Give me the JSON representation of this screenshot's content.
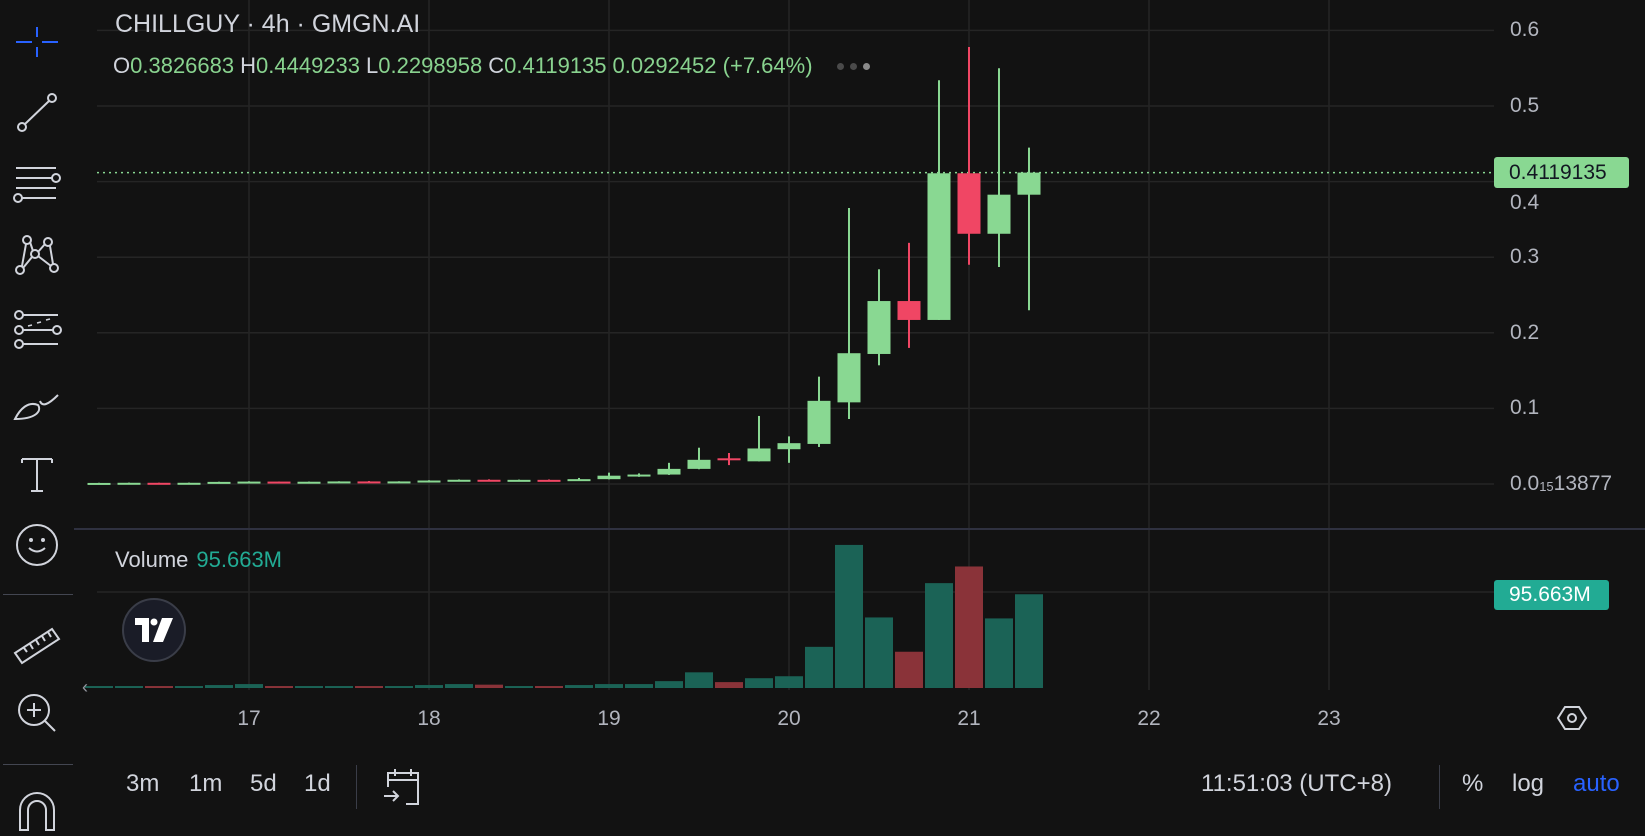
{
  "header": {
    "title": "CHILLGUY · 4h · GMGN.AI",
    "ohlc": {
      "o_label": "O",
      "o": "0.3826683",
      "h_label": "H",
      "h": "0.4449233",
      "l_label": "L",
      "l": "0.2298958",
      "c_label": "C",
      "c": "0.4119135",
      "change": "0.0292452 (+7.64%)"
    }
  },
  "colors": {
    "up": "#89d892",
    "down": "#f04664",
    "vol_up": "#1b6356",
    "vol_down": "#8a3339",
    "accent": "#2962ff",
    "background": "#121212",
    "volume_tag": "#22ab94"
  },
  "price_axis": {
    "labels": [
      {
        "value": 0.6,
        "text": "0.6"
      },
      {
        "value": 0.5,
        "text": "0.5"
      },
      {
        "value": 0.4,
        "text": "0.4"
      },
      {
        "value": 0.3,
        "text": "0.3"
      },
      {
        "value": 0.2,
        "text": "0.2"
      },
      {
        "value": 0.1,
        "text": "0.1"
      }
    ],
    "bottom_label": {
      "prefix": "0.0",
      "sub": "15",
      "rest": "13877"
    },
    "last_price_tag": "0.4119135"
  },
  "volume": {
    "label": "Volume",
    "value": "95.663M",
    "tag": "95.663M"
  },
  "time_axis": {
    "labels": [
      "17",
      "18",
      "19",
      "20",
      "21",
      "22",
      "23"
    ]
  },
  "chart_data": {
    "type": "candlestick",
    "symbol": "CHILLGUY",
    "interval": "4h",
    "ylim": [
      0,
      0.6
    ],
    "x_unit": "day of month",
    "candles": [
      {
        "day": 16,
        "hour": 4,
        "o": 0.0012,
        "h": 0.0016,
        "l": 0.001,
        "c": 0.0014,
        "v": 2
      },
      {
        "day": 16,
        "hour": 8,
        "o": 0.0014,
        "h": 0.0018,
        "l": 0.0012,
        "c": 0.0016,
        "v": 2
      },
      {
        "day": 16,
        "hour": 12,
        "o": 0.0016,
        "h": 0.0017,
        "l": 0.0012,
        "c": 0.0013,
        "v": 2
      },
      {
        "day": 16,
        "hour": 16,
        "o": 0.0013,
        "h": 0.0018,
        "l": 0.0012,
        "c": 0.0016,
        "v": 2
      },
      {
        "day": 16,
        "hour": 20,
        "o": 0.0016,
        "h": 0.003,
        "l": 0.0015,
        "c": 0.0028,
        "v": 3
      },
      {
        "day": 17,
        "hour": 0,
        "o": 0.0028,
        "h": 0.0036,
        "l": 0.0026,
        "c": 0.0032,
        "v": 4
      },
      {
        "day": 17,
        "hour": 4,
        "o": 0.0032,
        "h": 0.0033,
        "l": 0.0026,
        "c": 0.0027,
        "v": 2
      },
      {
        "day": 17,
        "hour": 8,
        "o": 0.0027,
        "h": 0.0032,
        "l": 0.0025,
        "c": 0.003,
        "v": 2
      },
      {
        "day": 17,
        "hour": 12,
        "o": 0.003,
        "h": 0.0036,
        "l": 0.0029,
        "c": 0.0034,
        "v": 2
      },
      {
        "day": 17,
        "hour": 16,
        "o": 0.0034,
        "h": 0.004,
        "l": 0.0029,
        "c": 0.0031,
        "v": 2
      },
      {
        "day": 17,
        "hour": 20,
        "o": 0.0031,
        "h": 0.0036,
        "l": 0.003,
        "c": 0.0034,
        "v": 2
      },
      {
        "day": 18,
        "hour": 0,
        "o": 0.0034,
        "h": 0.005,
        "l": 0.0032,
        "c": 0.0046,
        "v": 3
      },
      {
        "day": 18,
        "hour": 4,
        "o": 0.0046,
        "h": 0.006,
        "l": 0.0044,
        "c": 0.0056,
        "v": 4
      },
      {
        "day": 18,
        "hour": 8,
        "o": 0.0056,
        "h": 0.0062,
        "l": 0.0048,
        "c": 0.005,
        "v": 3.4
      },
      {
        "day": 18,
        "hour": 12,
        "o": 0.005,
        "h": 0.0058,
        "l": 0.0046,
        "c": 0.0055,
        "v": 2
      },
      {
        "day": 18,
        "hour": 16,
        "o": 0.0055,
        "h": 0.006,
        "l": 0.0048,
        "c": 0.005,
        "v": 2
      },
      {
        "day": 18,
        "hour": 20,
        "o": 0.005,
        "h": 0.008,
        "l": 0.0049,
        "c": 0.0064,
        "v": 3
      },
      {
        "day": 19,
        "hour": 0,
        "o": 0.0064,
        "h": 0.015,
        "l": 0.0062,
        "c": 0.011,
        "v": 4
      },
      {
        "day": 19,
        "hour": 4,
        "o": 0.011,
        "h": 0.014,
        "l": 0.0095,
        "c": 0.0125,
        "v": 4
      },
      {
        "day": 19,
        "hour": 8,
        "o": 0.0125,
        "h": 0.028,
        "l": 0.012,
        "c": 0.02,
        "v": 7
      },
      {
        "day": 19,
        "hour": 12,
        "o": 0.02,
        "h": 0.048,
        "l": 0.0195,
        "c": 0.032,
        "v": 16
      },
      {
        "day": 19,
        "hour": 16,
        "o": 0.034,
        "h": 0.041,
        "l": 0.025,
        "c": 0.032,
        "v": 6
      },
      {
        "day": 19,
        "hour": 20,
        "o": 0.03,
        "h": 0.09,
        "l": 0.03,
        "c": 0.047,
        "v": 10
      },
      {
        "day": 20,
        "hour": 0,
        "o": 0.046,
        "h": 0.063,
        "l": 0.028,
        "c": 0.054,
        "v": 12
      },
      {
        "day": 20,
        "hour": 4,
        "o": 0.053,
        "h": 0.142,
        "l": 0.049,
        "c": 0.11,
        "v": 42
      },
      {
        "day": 20,
        "hour": 8,
        "o": 0.108,
        "h": 0.365,
        "l": 0.086,
        "c": 0.173,
        "v": 146
      },
      {
        "day": 20,
        "hour": 12,
        "o": 0.172,
        "h": 0.284,
        "l": 0.157,
        "c": 0.242,
        "v": 72
      },
      {
        "day": 20,
        "hour": 16,
        "o": 0.242,
        "h": 0.319,
        "l": 0.18,
        "c": 0.217,
        "v": 37
      },
      {
        "day": 20,
        "hour": 20,
        "o": 0.217,
        "h": 0.534,
        "l": 0.217,
        "c": 0.411,
        "v": 107
      },
      {
        "day": 21,
        "hour": 0,
        "o": 0.411,
        "h": 0.578,
        "l": 0.29,
        "c": 0.331,
        "v": 124
      },
      {
        "day": 21,
        "hour": 4,
        "o": 0.331,
        "h": 0.55,
        "l": 0.287,
        "c": 0.3827,
        "v": 71
      },
      {
        "day": 21,
        "hour": 8,
        "o": 0.3826683,
        "h": 0.4449233,
        "l": 0.2298958,
        "c": 0.4119135,
        "v": 95.663
      }
    ],
    "volume_unit": "M"
  },
  "bottom_bar": {
    "ranges": [
      "3m",
      "1m",
      "5d",
      "1d"
    ],
    "clock": "11:51:03 (UTC+8)",
    "percent": "%",
    "log": "log",
    "auto": "auto"
  },
  "left_toolbar": {
    "tools": [
      "crosshair-icon",
      "trend-line-icon",
      "horizontal-lines-icon",
      "pattern-icon",
      "forecast-icon",
      "brush-icon",
      "text-icon",
      "emoji-icon",
      "ruler-icon",
      "zoom-in-icon",
      "magnet-icon"
    ]
  }
}
